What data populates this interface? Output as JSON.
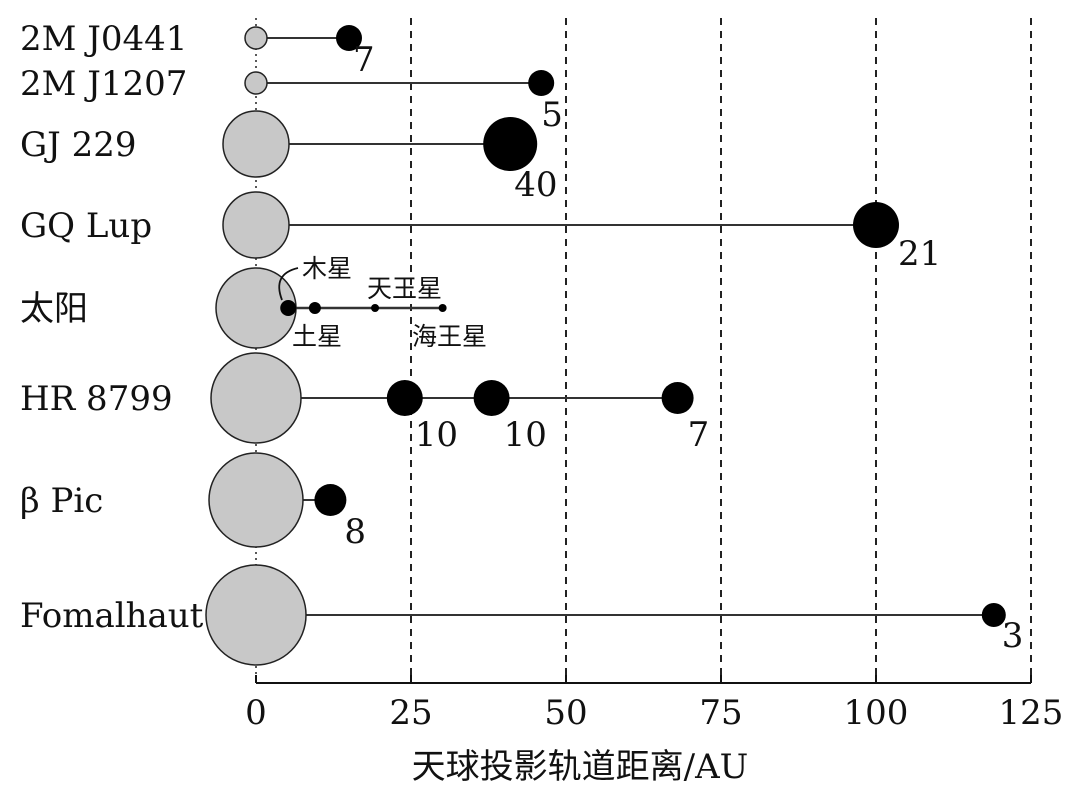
{
  "chart_data": {
    "type": "scatter",
    "xlabel": "天球投影轨道距离/AU",
    "xlim": [
      0,
      125
    ],
    "x_ticks": [
      0,
      25,
      50,
      75,
      100,
      125
    ],
    "x_tick_labels": [
      "0",
      "25",
      "50",
      "75",
      "100",
      "125"
    ],
    "grid": "vertical dashed lines at 25, 50, 75, 100, 125",
    "systems": [
      {
        "name": "2M J0441",
        "planets": [
          {
            "distance": 15,
            "label": "7"
          }
        ]
      },
      {
        "name": "2M J1207",
        "planets": [
          {
            "distance": 46,
            "label": "5"
          }
        ]
      },
      {
        "name": "GJ 229",
        "planets": [
          {
            "distance": 41,
            "label": "40"
          }
        ]
      },
      {
        "name": "GQ Lup",
        "planets": [
          {
            "distance": 100,
            "label": "21"
          }
        ]
      },
      {
        "name": "太阳",
        "planets": [
          {
            "distance": 5.2,
            "label": "木星"
          },
          {
            "distance": 9.5,
            "label": "土星"
          },
          {
            "distance": 19.2,
            "label": "天王星"
          },
          {
            "distance": 30.1,
            "label": "海王星"
          }
        ]
      },
      {
        "name": "HR 8799",
        "planets": [
          {
            "distance": 24,
            "label": "10"
          },
          {
            "distance": 38,
            "label": "10"
          },
          {
            "distance": 68,
            "label": "7"
          }
        ]
      },
      {
        "name": "β Pic",
        "planets": [
          {
            "distance": 12,
            "label": "8"
          }
        ]
      },
      {
        "name": "Fomalhaut",
        "planets": [
          {
            "distance": 119,
            "label": "3"
          }
        ]
      }
    ]
  },
  "colors": {
    "star_fill": "#c8c8c8",
    "planet_fill": "#000000",
    "line": "#333333",
    "grid": "#222222"
  }
}
